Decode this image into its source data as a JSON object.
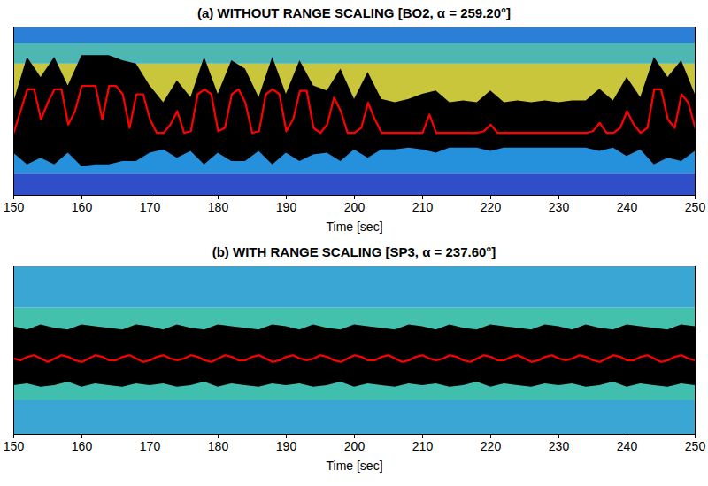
{
  "chart_data": [
    {
      "type": "line",
      "title": "(a) WITHOUT RANGE SCALING [BO2, α = 259.20°]",
      "x_label": "Time [sec]",
      "xlim": [
        150,
        250
      ],
      "xticks": [
        150,
        160,
        170,
        180,
        190,
        200,
        210,
        220,
        230,
        240,
        250
      ],
      "ylim": [
        0,
        1
      ],
      "tick_labels": "x",
      "background_bands": [
        {
          "from": 0,
          "to": 0.13,
          "color": "#2f4fc8"
        },
        {
          "from": 0.13,
          "to": 0.3,
          "color": "#2590dc"
        },
        {
          "from": 0.3,
          "to": 0.5,
          "color": "#3cb4c4"
        },
        {
          "from": 0.5,
          "to": 0.78,
          "color": "#c9c63c"
        },
        {
          "from": 0.78,
          "to": 0.9,
          "color": "#4db7b4"
        },
        {
          "from": 0.9,
          "to": 1,
          "color": "#2c7fd6"
        }
      ],
      "envelope": {
        "color": "#000000",
        "x": [
          150,
          152,
          154,
          156,
          158,
          160,
          162,
          164,
          166,
          168,
          170,
          172,
          174,
          176,
          178,
          180,
          182,
          184,
          186,
          188,
          190,
          192,
          194,
          196,
          198,
          200,
          202,
          204,
          206,
          208,
          210,
          212,
          214,
          216,
          218,
          220,
          222,
          224,
          226,
          228,
          230,
          232,
          234,
          236,
          238,
          240,
          242,
          244,
          246,
          248,
          250
        ],
        "upper": [
          0.55,
          0.82,
          0.7,
          0.82,
          0.65,
          0.83,
          0.83,
          0.83,
          0.8,
          0.78,
          0.65,
          0.55,
          0.68,
          0.58,
          0.82,
          0.6,
          0.8,
          0.75,
          0.58,
          0.82,
          0.6,
          0.8,
          0.65,
          0.62,
          0.75,
          0.57,
          0.73,
          0.57,
          0.55,
          0.57,
          0.6,
          0.62,
          0.55,
          0.56,
          0.55,
          0.62,
          0.55,
          0.56,
          0.55,
          0.56,
          0.55,
          0.56,
          0.56,
          0.63,
          0.56,
          0.7,
          0.58,
          0.82,
          0.7,
          0.8,
          0.6
        ],
        "lower": [
          0.25,
          0.18,
          0.22,
          0.18,
          0.25,
          0.17,
          0.18,
          0.18,
          0.2,
          0.2,
          0.25,
          0.27,
          0.22,
          0.26,
          0.18,
          0.25,
          0.2,
          0.2,
          0.26,
          0.18,
          0.25,
          0.2,
          0.24,
          0.25,
          0.2,
          0.27,
          0.22,
          0.27,
          0.27,
          0.28,
          0.27,
          0.25,
          0.28,
          0.28,
          0.28,
          0.26,
          0.28,
          0.28,
          0.28,
          0.28,
          0.28,
          0.28,
          0.28,
          0.26,
          0.28,
          0.23,
          0.27,
          0.18,
          0.22,
          0.2,
          0.26
        ]
      },
      "x": [
        150,
        151,
        152,
        153,
        154,
        155,
        156,
        157,
        158,
        159,
        160,
        161,
        162,
        163,
        164,
        165,
        166,
        167,
        168,
        169,
        170,
        171,
        172,
        173,
        174,
        175,
        176,
        177,
        178,
        179,
        180,
        181,
        182,
        183,
        184,
        185,
        186,
        187,
        188,
        189,
        190,
        191,
        192,
        193,
        194,
        195,
        196,
        197,
        198,
        199,
        200,
        201,
        202,
        203,
        204,
        205,
        206,
        207,
        208,
        209,
        210,
        211,
        212,
        213,
        214,
        215,
        216,
        217,
        218,
        219,
        220,
        221,
        222,
        223,
        224,
        225,
        226,
        227,
        228,
        229,
        230,
        231,
        232,
        233,
        234,
        235,
        236,
        237,
        238,
        239,
        240,
        241,
        242,
        243,
        244,
        245,
        246,
        247,
        248,
        249,
        250
      ],
      "series": [
        {
          "color": "#ff0000",
          "values": [
            0.37,
            0.5,
            0.63,
            0.63,
            0.45,
            0.55,
            0.63,
            0.63,
            0.42,
            0.5,
            0.65,
            0.65,
            0.65,
            0.45,
            0.65,
            0.65,
            0.6,
            0.4,
            0.6,
            0.6,
            0.45,
            0.37,
            0.37,
            0.42,
            0.5,
            0.37,
            0.38,
            0.6,
            0.63,
            0.6,
            0.38,
            0.4,
            0.6,
            0.63,
            0.55,
            0.37,
            0.38,
            0.6,
            0.63,
            0.6,
            0.38,
            0.45,
            0.62,
            0.62,
            0.4,
            0.37,
            0.42,
            0.58,
            0.5,
            0.37,
            0.37,
            0.4,
            0.55,
            0.45,
            0.37,
            0.37,
            0.37,
            0.37,
            0.37,
            0.37,
            0.37,
            0.48,
            0.37,
            0.37,
            0.37,
            0.37,
            0.37,
            0.37,
            0.37,
            0.38,
            0.42,
            0.37,
            0.37,
            0.37,
            0.37,
            0.37,
            0.37,
            0.37,
            0.37,
            0.37,
            0.37,
            0.37,
            0.37,
            0.37,
            0.37,
            0.38,
            0.43,
            0.37,
            0.37,
            0.4,
            0.5,
            0.42,
            0.37,
            0.4,
            0.63,
            0.63,
            0.45,
            0.4,
            0.6,
            0.55,
            0.4
          ]
        }
      ]
    },
    {
      "type": "line",
      "title": "(b) WITH RANGE SCALING [SP3, α = 237.60°]",
      "x_label": "Time [sec]",
      "xlim": [
        150,
        250
      ],
      "xticks": [
        150,
        160,
        170,
        180,
        190,
        200,
        210,
        220,
        230,
        240,
        250
      ],
      "ylim": [
        0,
        1
      ],
      "tick_labels": "x",
      "background_bands": [
        {
          "from": 0,
          "to": 0.2,
          "color": "#3aa6d4"
        },
        {
          "from": 0.2,
          "to": 0.35,
          "color": "#40bfae"
        },
        {
          "from": 0.35,
          "to": 0.6,
          "color": "#2f9cc6"
        },
        {
          "from": 0.6,
          "to": 0.75,
          "color": "#44c1ad"
        },
        {
          "from": 0.75,
          "to": 1,
          "color": "#3aa6d4"
        }
      ],
      "envelope": {
        "color": "#000000",
        "x": [
          150,
          152,
          154,
          156,
          158,
          160,
          162,
          164,
          166,
          168,
          170,
          172,
          174,
          176,
          178,
          180,
          182,
          184,
          186,
          188,
          190,
          192,
          194,
          196,
          198,
          200,
          202,
          204,
          206,
          208,
          210,
          212,
          214,
          216,
          218,
          220,
          222,
          224,
          226,
          228,
          230,
          232,
          234,
          236,
          238,
          240,
          242,
          244,
          246,
          248,
          250
        ],
        "upper": [
          0.64,
          0.62,
          0.65,
          0.63,
          0.62,
          0.65,
          0.64,
          0.63,
          0.62,
          0.65,
          0.64,
          0.62,
          0.65,
          0.63,
          0.62,
          0.65,
          0.64,
          0.63,
          0.62,
          0.65,
          0.64,
          0.62,
          0.65,
          0.63,
          0.62,
          0.65,
          0.64,
          0.63,
          0.62,
          0.65,
          0.64,
          0.62,
          0.65,
          0.63,
          0.62,
          0.65,
          0.64,
          0.63,
          0.62,
          0.65,
          0.64,
          0.62,
          0.65,
          0.63,
          0.62,
          0.65,
          0.64,
          0.63,
          0.62,
          0.65,
          0.64
        ],
        "lower": [
          0.29,
          0.3,
          0.28,
          0.29,
          0.31,
          0.28,
          0.3,
          0.29,
          0.28,
          0.3,
          0.29,
          0.3,
          0.28,
          0.29,
          0.31,
          0.28,
          0.3,
          0.29,
          0.28,
          0.3,
          0.29,
          0.3,
          0.28,
          0.29,
          0.31,
          0.28,
          0.3,
          0.29,
          0.28,
          0.3,
          0.29,
          0.3,
          0.28,
          0.29,
          0.31,
          0.28,
          0.3,
          0.29,
          0.28,
          0.3,
          0.29,
          0.3,
          0.28,
          0.29,
          0.31,
          0.28,
          0.3,
          0.29,
          0.28,
          0.3,
          0.29
        ]
      },
      "x": [
        150,
        151,
        152,
        153,
        154,
        155,
        156,
        157,
        158,
        159,
        160,
        161,
        162,
        163,
        164,
        165,
        166,
        167,
        168,
        169,
        170,
        171,
        172,
        173,
        174,
        175,
        176,
        177,
        178,
        179,
        180,
        181,
        182,
        183,
        184,
        185,
        186,
        187,
        188,
        189,
        190,
        191,
        192,
        193,
        194,
        195,
        196,
        197,
        198,
        199,
        200,
        201,
        202,
        203,
        204,
        205,
        206,
        207,
        208,
        209,
        210,
        211,
        212,
        213,
        214,
        215,
        216,
        217,
        218,
        219,
        220,
        221,
        222,
        223,
        224,
        225,
        226,
        227,
        228,
        229,
        230,
        231,
        232,
        233,
        234,
        235,
        236,
        237,
        238,
        239,
        240,
        241,
        242,
        243,
        244,
        245,
        246,
        247,
        248,
        249,
        250
      ],
      "series": [
        {
          "color": "#ff0000",
          "values": [
            0.45,
            0.44,
            0.46,
            0.47,
            0.45,
            0.43,
            0.45,
            0.47,
            0.46,
            0.44,
            0.43,
            0.45,
            0.47,
            0.46,
            0.44,
            0.44,
            0.46,
            0.47,
            0.45,
            0.43,
            0.44,
            0.46,
            0.47,
            0.45,
            0.44,
            0.45,
            0.47,
            0.46,
            0.44,
            0.43,
            0.45,
            0.47,
            0.46,
            0.44,
            0.44,
            0.46,
            0.47,
            0.45,
            0.43,
            0.44,
            0.46,
            0.47,
            0.45,
            0.44,
            0.45,
            0.47,
            0.46,
            0.44,
            0.43,
            0.45,
            0.47,
            0.46,
            0.44,
            0.44,
            0.46,
            0.47,
            0.45,
            0.43,
            0.44,
            0.46,
            0.47,
            0.45,
            0.44,
            0.45,
            0.47,
            0.46,
            0.44,
            0.43,
            0.45,
            0.47,
            0.46,
            0.44,
            0.44,
            0.46,
            0.47,
            0.45,
            0.43,
            0.44,
            0.46,
            0.47,
            0.45,
            0.44,
            0.45,
            0.47,
            0.46,
            0.44,
            0.43,
            0.45,
            0.47,
            0.46,
            0.44,
            0.44,
            0.46,
            0.47,
            0.45,
            0.43,
            0.44,
            0.46,
            0.47,
            0.45,
            0.44
          ]
        }
      ]
    }
  ]
}
